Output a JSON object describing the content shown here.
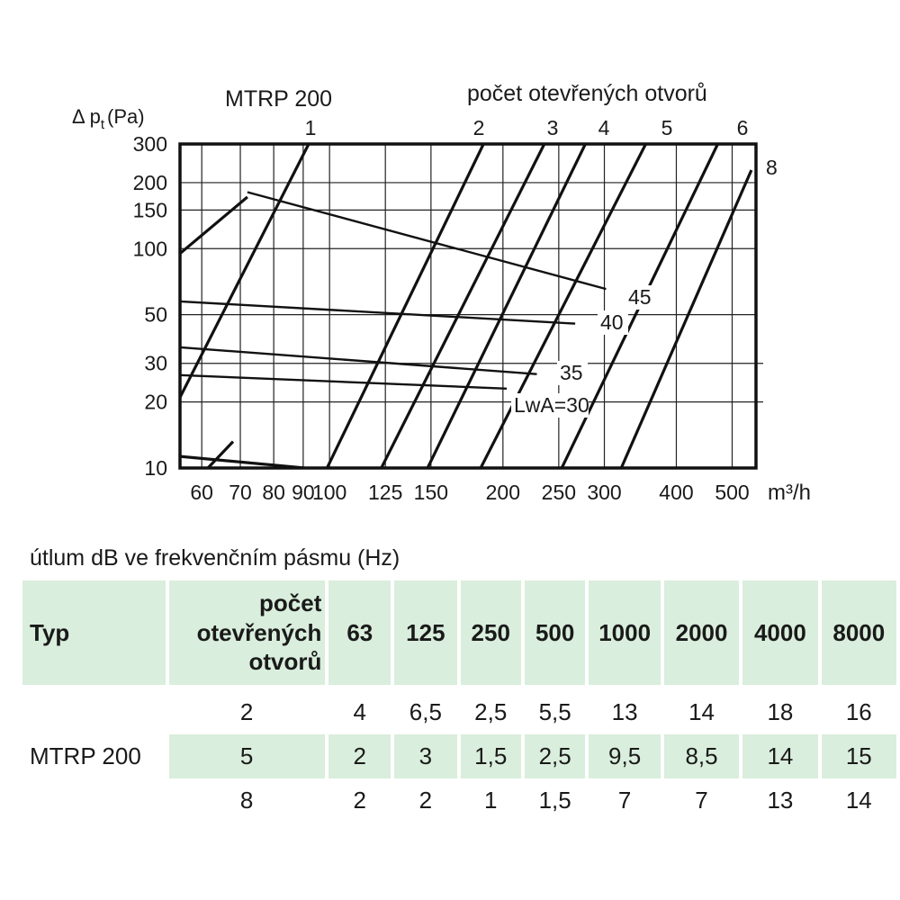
{
  "chart_data": {
    "type": "line",
    "title": "MTRP 200",
    "ylabel": "Δ p",
    "ylabel_sub": "t",
    "ylabel_unit": "(Pa)",
    "xlabel": "m³/h",
    "top_axis_label": "počet otevřených otvorů",
    "x_scale": "log",
    "y_scale": "log",
    "xlim": [
      55,
      550
    ],
    "ylim": [
      10,
      300
    ],
    "x_ticks": [
      60,
      70,
      80,
      90,
      100,
      125,
      150,
      200,
      250,
      300,
      400,
      500
    ],
    "x_tick_labels": [
      "60",
      "70",
      "80",
      "90",
      "100",
      "125",
      "150",
      "200",
      "250",
      "300",
      "400",
      "500"
    ],
    "y_ticks": [
      10,
      20,
      30,
      50,
      100,
      150,
      200,
      300
    ],
    "y_tick_labels": [
      "10",
      "20",
      "30",
      "50",
      "100",
      "150",
      "200",
      "300"
    ],
    "opening_lines": [
      {
        "name": "1",
        "points": [
          [
            55,
            21
          ],
          [
            92,
            300
          ]
        ]
      },
      {
        "name": "",
        "points": [
          [
            55,
            11.3
          ],
          [
            90.5,
            10
          ]
        ]
      },
      {
        "name": "",
        "points": [
          [
            61.5,
            10
          ],
          [
            68,
            13.2
          ]
        ]
      },
      {
        "name": "",
        "points": [
          [
            55,
            95
          ],
          [
            72,
            172
          ]
        ]
      },
      {
        "name": "2",
        "points": [
          [
            99,
            10
          ],
          [
            185,
            300
          ]
        ]
      },
      {
        "name": "3",
        "points": [
          [
            123,
            10
          ],
          [
            236,
            300
          ]
        ]
      },
      {
        "name": "4",
        "points": [
          [
            148,
            10
          ],
          [
            278,
            300
          ]
        ]
      },
      {
        "name": "5",
        "points": [
          [
            183,
            10
          ],
          [
            354,
            300
          ]
        ]
      },
      {
        "name": "6",
        "points": [
          [
            253,
            10
          ],
          [
            472,
            300
          ]
        ]
      },
      {
        "name": "8",
        "points": [
          [
            321,
            10
          ],
          [
            540,
            228
          ]
        ]
      }
    ],
    "noise_series": [
      {
        "name": "LwA=30",
        "points": [
          [
            55,
            26.5
          ],
          [
            203,
            23
          ]
        ]
      },
      {
        "name": "35",
        "points": [
          [
            55,
            35.5
          ],
          [
            229,
            26.8
          ]
        ]
      },
      {
        "name": "40",
        "points": [
          [
            55,
            57.5
          ],
          [
            267,
            45.5
          ]
        ]
      },
      {
        "name": "45",
        "points": [
          [
            72,
            181
          ],
          [
            302,
            65.5
          ]
        ]
      }
    ]
  },
  "attenuation_table": {
    "caption": "útlum dB ve frekvenčním pásmu (Hz)",
    "headers": {
      "typ": "Typ",
      "count": [
        "počet",
        "otevřených",
        "otvorů"
      ],
      "frequencies": [
        "63",
        "125",
        "250",
        "500",
        "1000",
        "2000",
        "4000",
        "8000"
      ]
    },
    "type_name": "MTRP 200",
    "rows": [
      {
        "count": "2",
        "values": [
          "4",
          "6,5",
          "2,5",
          "5,5",
          "13",
          "14",
          "18",
          "16"
        ]
      },
      {
        "count": "5",
        "values": [
          "2",
          "3",
          "1,5",
          "2,5",
          "9,5",
          "8,5",
          "14",
          "15"
        ]
      },
      {
        "count": "8",
        "values": [
          "2",
          "2",
          "1",
          "1,5",
          "7",
          "7",
          "13",
          "14"
        ]
      }
    ],
    "shade_color": "#d9eedc"
  }
}
